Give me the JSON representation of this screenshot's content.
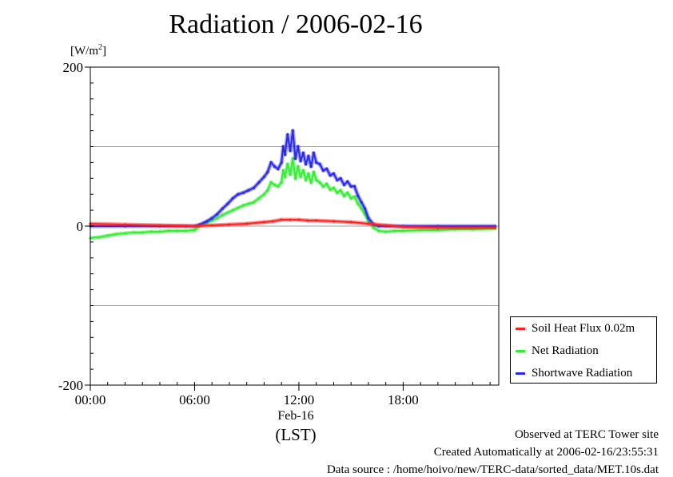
{
  "chart_data": {
    "type": "line",
    "title": "Radiation / 2006-02-16",
    "ylabel_prefix": "[W/m",
    "ylabel_sup": "2",
    "ylabel_suffix": "]",
    "xlabel_date": "Feb-16",
    "xlabel_unit": "(LST)",
    "xlim": [
      0,
      23.5
    ],
    "ylim": [
      -200,
      200
    ],
    "x_ticks": [
      {
        "value": 0,
        "label": "00:00"
      },
      {
        "value": 6,
        "label": "06:00"
      },
      {
        "value": 12,
        "label": "12:00"
      },
      {
        "value": 18,
        "label": "18:00"
      }
    ],
    "y_ticks": [
      {
        "value": -200,
        "label": "-200"
      },
      {
        "value": 0,
        "label": "0"
      },
      {
        "value": 200,
        "label": "200"
      }
    ],
    "grid_y": [
      -100,
      0,
      100
    ],
    "legend_position": "right",
    "series": [
      {
        "name": "Soil Heat Flux 0.02m",
        "color": "#ff2020",
        "x": [
          0,
          2,
          4,
          6,
          7,
          8,
          9,
          10,
          10.5,
          11,
          11.5,
          12,
          12.5,
          13,
          14,
          15,
          16,
          17,
          18,
          20,
          23.3
        ],
        "values": [
          3,
          2,
          1,
          0,
          1,
          2,
          3,
          5,
          6,
          8,
          8,
          8,
          7,
          7,
          6,
          5,
          3,
          1,
          -1,
          -2,
          -2
        ]
      },
      {
        "name": "Net Radiation",
        "color": "#30f030",
        "x": [
          0,
          0.5,
          1,
          1.5,
          2,
          2.5,
          3,
          3.5,
          4,
          4.5,
          5,
          5.5,
          6,
          6.3,
          6.7,
          7,
          7.3,
          7.6,
          7.9,
          8.2,
          8.5,
          8.8,
          9.1,
          9.4,
          9.7,
          10,
          10.2,
          10.4,
          10.6,
          10.8,
          11,
          11.1,
          11.2,
          11.35,
          11.5,
          11.65,
          11.8,
          11.95,
          12.1,
          12.25,
          12.4,
          12.55,
          12.7,
          12.85,
          13,
          13.2,
          13.4,
          13.6,
          13.8,
          14,
          14.2,
          14.4,
          14.6,
          14.8,
          15,
          15.2,
          15.4,
          15.6,
          15.8,
          16,
          16.3,
          16.6,
          17,
          17.5,
          18,
          19,
          20,
          21,
          22,
          23.3
        ],
        "values": [
          -15,
          -14,
          -12,
          -10,
          -9,
          -8,
          -8,
          -7,
          -7,
          -6,
          -6,
          -6,
          -5,
          0,
          4,
          7,
          10,
          14,
          17,
          20,
          23,
          26,
          28,
          30,
          35,
          40,
          45,
          55,
          52,
          50,
          55,
          70,
          62,
          78,
          65,
          85,
          60,
          75,
          62,
          70,
          58,
          66,
          55,
          68,
          58,
          55,
          50,
          53,
          46,
          48,
          42,
          45,
          38,
          42,
          35,
          37,
          28,
          22,
          15,
          6,
          -2,
          -6,
          -7,
          -6,
          -6,
          -5,
          -5,
          -4,
          -4,
          -3
        ]
      },
      {
        "name": "Shortwave Radiation",
        "color": "#2828f0",
        "x": [
          0,
          2,
          4,
          5.5,
          6,
          6.3,
          6.7,
          7,
          7.3,
          7.6,
          7.9,
          8.2,
          8.5,
          8.8,
          9.1,
          9.4,
          9.7,
          10,
          10.2,
          10.4,
          10.6,
          10.8,
          11,
          11.1,
          11.2,
          11.35,
          11.5,
          11.65,
          11.8,
          11.95,
          12.1,
          12.25,
          12.4,
          12.55,
          12.7,
          12.85,
          13,
          13.2,
          13.4,
          13.6,
          13.8,
          14,
          14.2,
          14.4,
          14.6,
          14.8,
          15,
          15.2,
          15.4,
          15.6,
          15.8,
          16,
          16.3,
          16.6,
          17,
          18,
          20,
          23.3
        ],
        "values": [
          0,
          0,
          0,
          0,
          0,
          2,
          6,
          10,
          15,
          22,
          28,
          35,
          40,
          42,
          45,
          48,
          55,
          62,
          68,
          80,
          75,
          72,
          80,
          100,
          90,
          115,
          95,
          120,
          85,
          100,
          82,
          92,
          78,
          88,
          75,
          92,
          80,
          78,
          70,
          72,
          64,
          66,
          58,
          60,
          52,
          56,
          50,
          50,
          38,
          30,
          22,
          10,
          2,
          0,
          0,
          0,
          0,
          0
        ]
      }
    ]
  },
  "footer": {
    "line1": "Observed at TERC Tower site",
    "line2": "Created Automatically at 2006-02-16/23:55:31",
    "line3": "Data source : /home/hoivo/new/TERC-data/sorted_data/MET.10s.dat"
  }
}
